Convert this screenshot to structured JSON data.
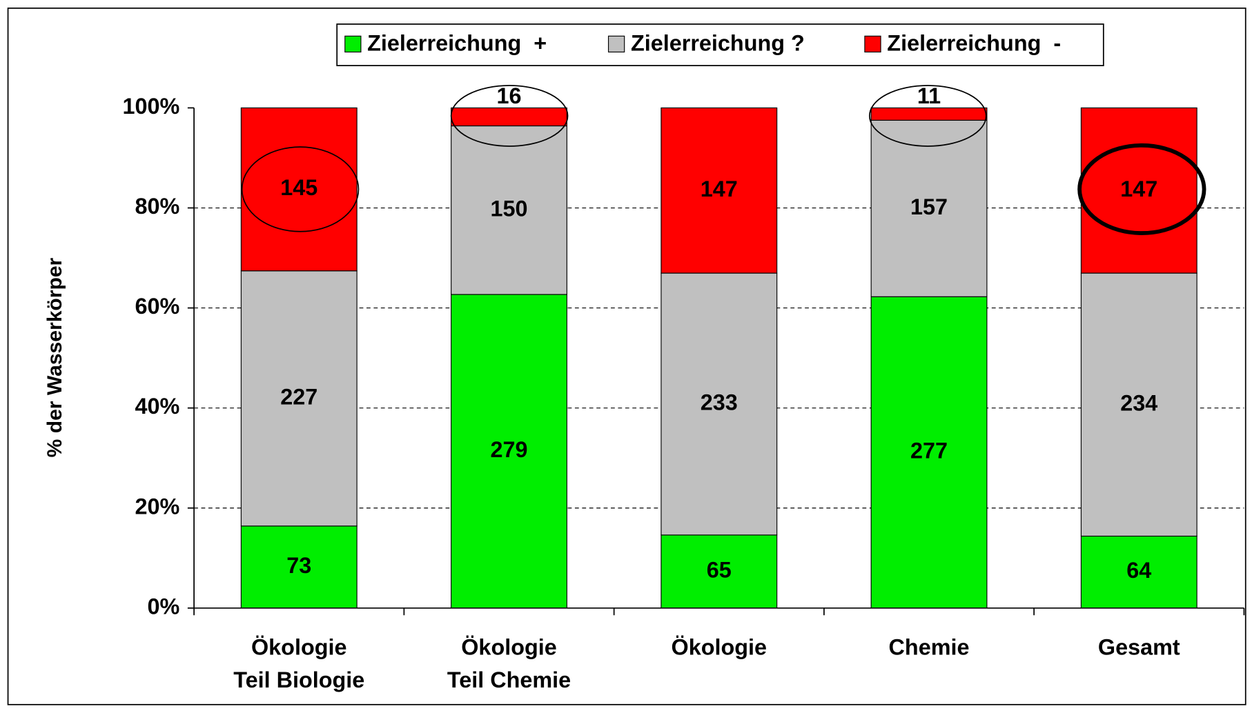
{
  "chart_data": {
    "type": "bar",
    "stack": "percent",
    "y_label": "% der Wasserkörper",
    "categories": [
      [
        "Ökologie",
        "Teil Biologie"
      ],
      [
        "Ökologie",
        "Teil Chemie"
      ],
      [
        "Ökologie"
      ],
      [
        "Chemie"
      ],
      [
        "Gesamt"
      ]
    ],
    "series": [
      {
        "name": "Zielerreichung  +",
        "color": "#00ee00",
        "values": [
          73,
          279,
          65,
          277,
          64
        ]
      },
      {
        "name": "Zielerreichung ?",
        "color": "#c0c0c0",
        "values": [
          227,
          150,
          233,
          157,
          234
        ]
      },
      {
        "name": "Zielerreichung  -",
        "color": "#ff0000",
        "values": [
          145,
          16,
          147,
          11,
          147
        ]
      }
    ],
    "ylim": [
      0,
      100
    ],
    "yticks": [
      {
        "value": 0,
        "label": "0%"
      },
      {
        "value": 20,
        "label": "20%"
      },
      {
        "value": 40,
        "label": "40%"
      },
      {
        "value": 60,
        "label": "60%"
      },
      {
        "value": 80,
        "label": "80%"
      },
      {
        "value": 100,
        "label": "100%"
      }
    ],
    "grid": true,
    "legend": "top"
  }
}
